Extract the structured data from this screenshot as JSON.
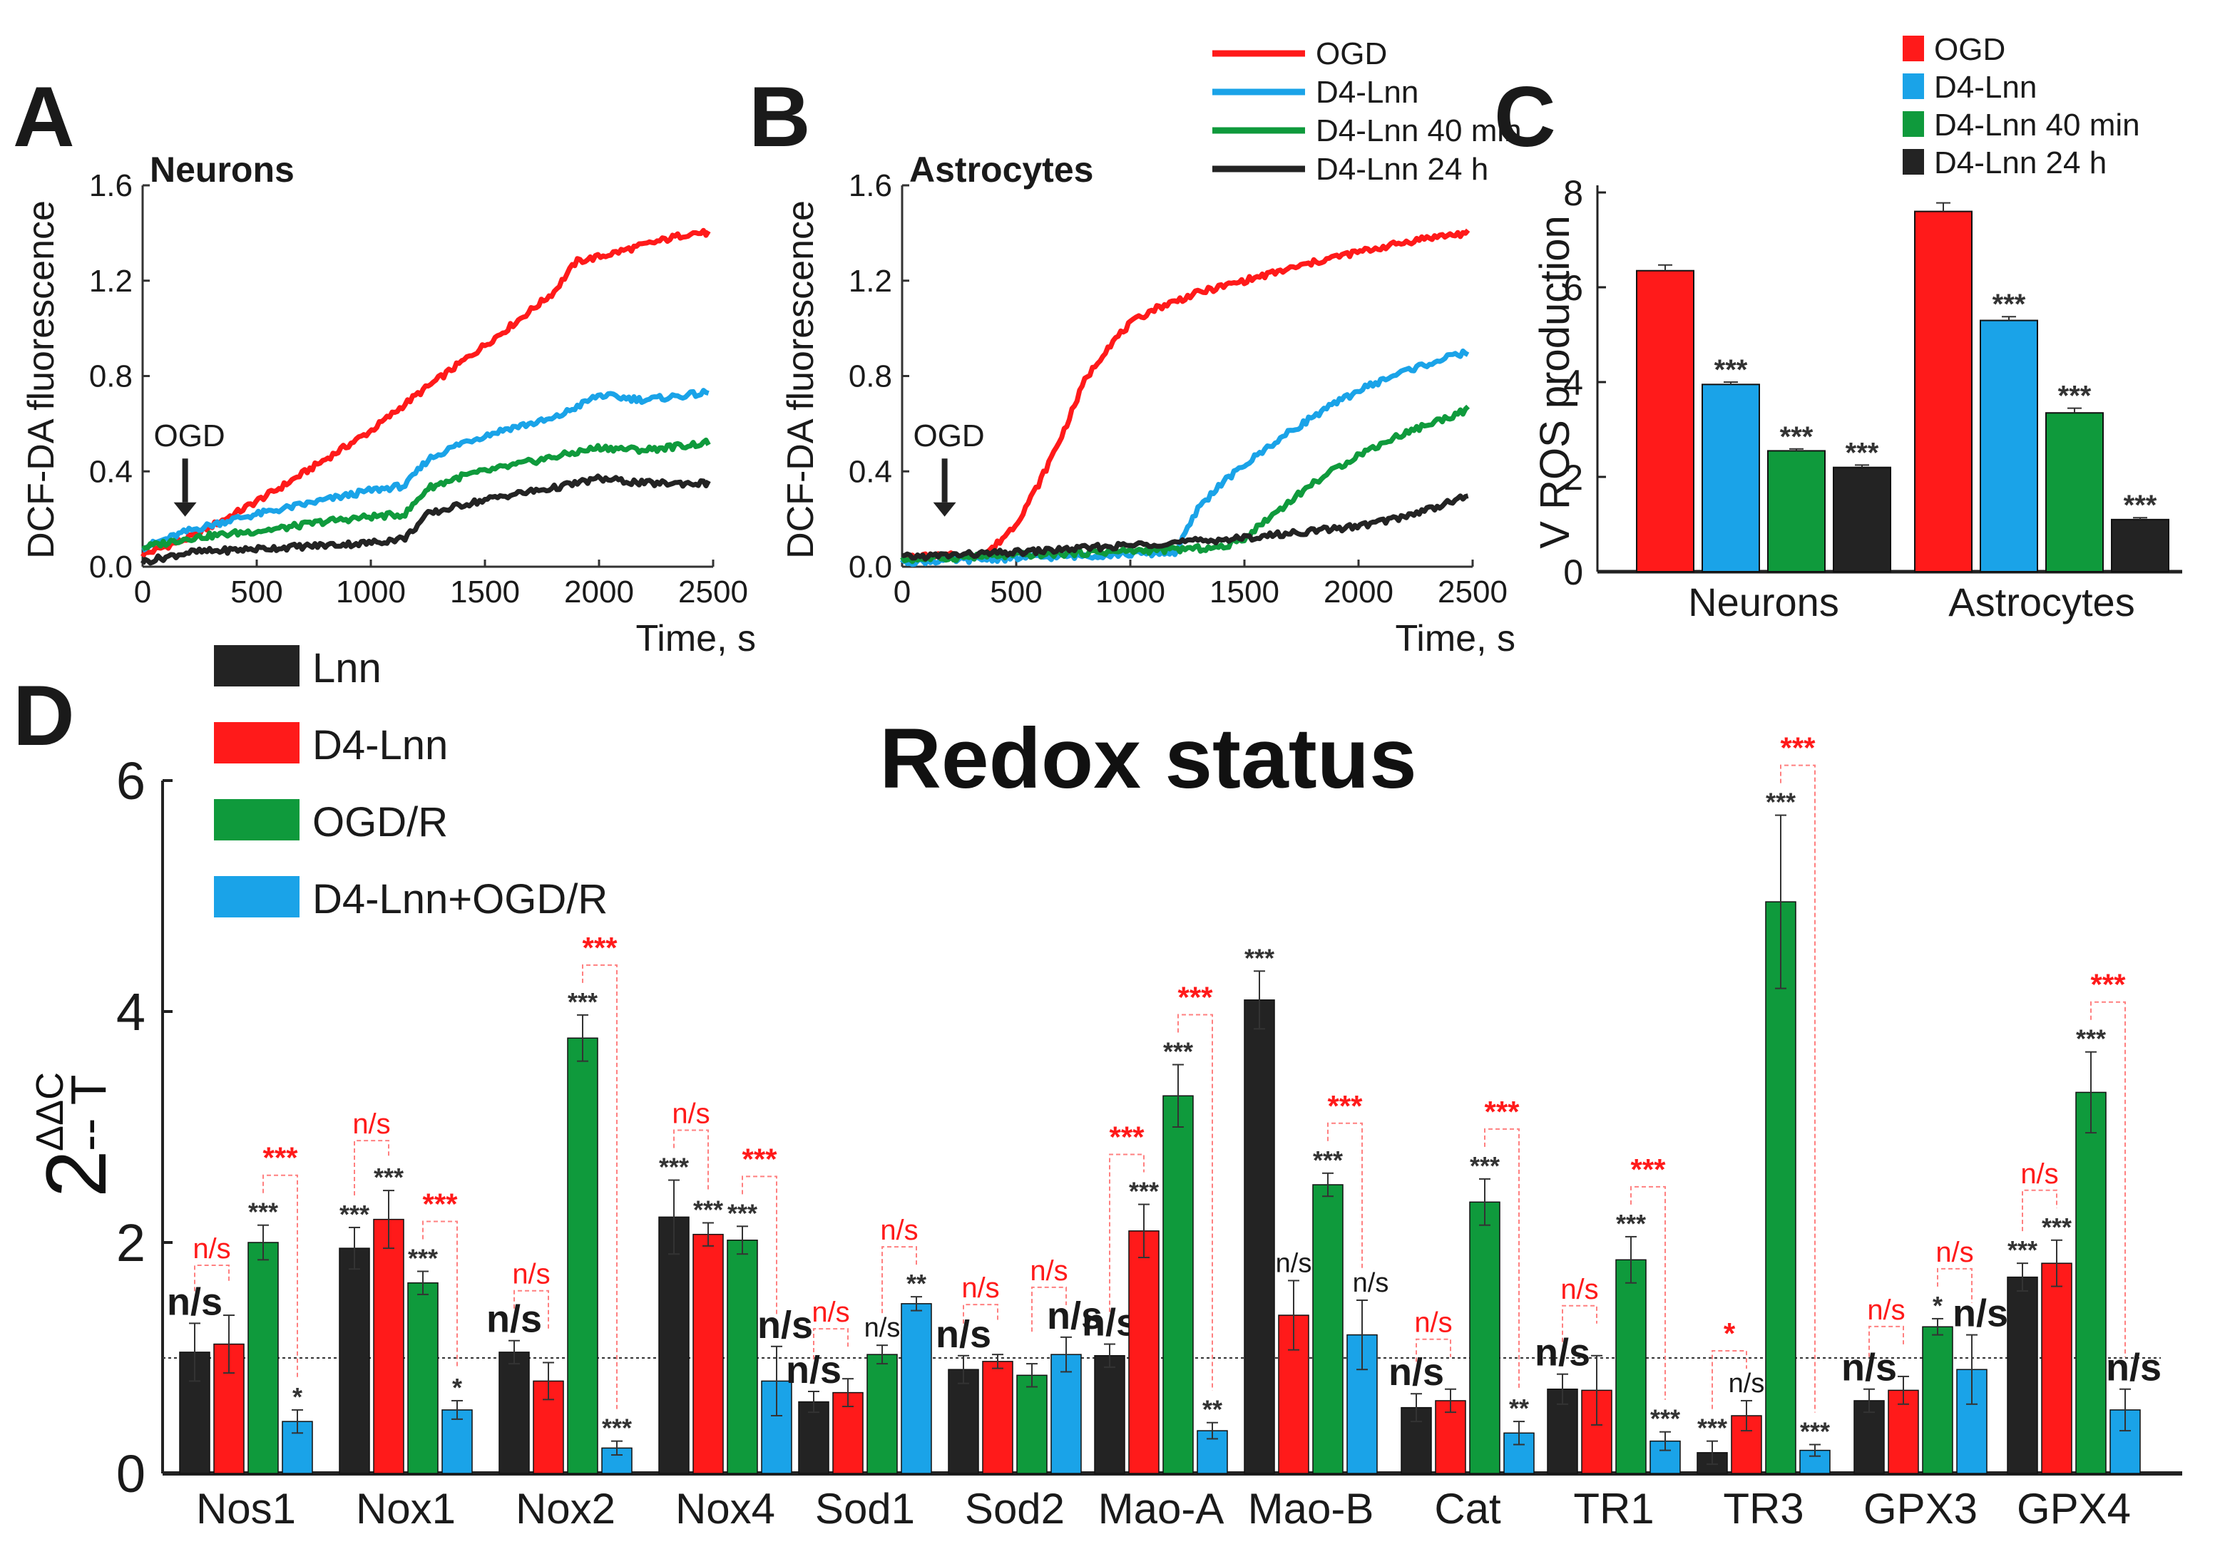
{
  "colors": {
    "red": "#ff1a1a",
    "blue": "#1aa3e8",
    "green": "#0f9a3c",
    "black": "#232323",
    "sig_red": "#ff1a1a",
    "bracket_red": "#ff8080"
  },
  "chart_data": [
    {
      "panel": "A",
      "type": "line",
      "title": "Neurons",
      "xlabel": "Time, s",
      "ylabel": "DCF-DA fluorescence",
      "xlim": [
        0,
        2500
      ],
      "ylim": [
        0,
        1.6
      ],
      "xticks": [
        "0",
        "500",
        "1000",
        "1500",
        "2000",
        "2500"
      ],
      "yticks": [
        "0.0",
        "0.4",
        "0.8",
        "1.2",
        "1.6"
      ],
      "annotation": "OGD",
      "annotation_x": 180,
      "series": [
        {
          "name": "OGD",
          "color": "red",
          "x": [
            0,
            200,
            400,
            600,
            800,
            1000,
            1200,
            1400,
            1600,
            1800,
            1900,
            2000,
            2200,
            2400,
            2480
          ],
          "y": [
            0.05,
            0.12,
            0.22,
            0.33,
            0.45,
            0.57,
            0.72,
            0.86,
            1.0,
            1.15,
            1.28,
            1.3,
            1.35,
            1.4,
            1.4
          ]
        },
        {
          "name": "D4-Lnn",
          "color": "blue",
          "x": [
            0,
            200,
            400,
            600,
            800,
            1000,
            1150,
            1250,
            1400,
            1600,
            1800,
            2000,
            2200,
            2480
          ],
          "y": [
            0.08,
            0.15,
            0.2,
            0.24,
            0.28,
            0.32,
            0.34,
            0.45,
            0.52,
            0.58,
            0.62,
            0.72,
            0.7,
            0.73
          ]
        },
        {
          "name": "D4-Lnn 40 min",
          "color": "green",
          "x": [
            0,
            200,
            400,
            600,
            800,
            1000,
            1150,
            1250,
            1400,
            1600,
            1800,
            2000,
            2200,
            2480
          ],
          "y": [
            0.08,
            0.12,
            0.14,
            0.16,
            0.19,
            0.21,
            0.22,
            0.33,
            0.38,
            0.42,
            0.46,
            0.5,
            0.49,
            0.52
          ]
        },
        {
          "name": "D4-Lnn 24 h",
          "color": "black",
          "x": [
            0,
            200,
            400,
            600,
            800,
            1000,
            1150,
            1250,
            1400,
            1600,
            1800,
            2000,
            2200,
            2480
          ],
          "y": [
            0.02,
            0.06,
            0.07,
            0.08,
            0.09,
            0.1,
            0.12,
            0.22,
            0.26,
            0.3,
            0.33,
            0.37,
            0.35,
            0.35
          ]
        }
      ]
    },
    {
      "panel": "B",
      "type": "line",
      "title": "Astrocytes",
      "xlabel": "Time, s",
      "ylabel": "DCF-DA fluorescence",
      "xlim": [
        0,
        2500
      ],
      "ylim": [
        0,
        1.6
      ],
      "xticks": [
        "0",
        "500",
        "1000",
        "1500",
        "2000",
        "2500"
      ],
      "yticks": [
        "0.0",
        "0.4",
        "0.8",
        "1.2",
        "1.6"
      ],
      "annotation": "OGD",
      "annotation_x": 180,
      "legend": [
        "OGD",
        "D4-Lnn",
        "D4-Lnn 40 min",
        "D4-Lnn 24 h"
      ],
      "series": [
        {
          "name": "OGD",
          "color": "red",
          "x": [
            0,
            350,
            400,
            500,
            600,
            700,
            800,
            900,
            1000,
            1100,
            1300,
            1500,
            1700,
            1900,
            2100,
            2300,
            2480
          ],
          "y": [
            0.04,
            0.05,
            0.08,
            0.18,
            0.35,
            0.55,
            0.78,
            0.92,
            1.02,
            1.08,
            1.15,
            1.2,
            1.25,
            1.3,
            1.34,
            1.38,
            1.4
          ]
        },
        {
          "name": "D4-Lnn",
          "color": "blue",
          "x": [
            0,
            1200,
            1300,
            1400,
            1600,
            1800,
            2000,
            2200,
            2400,
            2480
          ],
          "y": [
            0.02,
            0.06,
            0.25,
            0.35,
            0.5,
            0.63,
            0.74,
            0.82,
            0.88,
            0.9
          ]
        },
        {
          "name": "D4-Lnn 40 min",
          "color": "green",
          "x": [
            0,
            1400,
            1500,
            1600,
            1800,
            2000,
            2200,
            2400,
            2480
          ],
          "y": [
            0.03,
            0.08,
            0.12,
            0.2,
            0.35,
            0.47,
            0.56,
            0.63,
            0.66
          ]
        },
        {
          "name": "D4-Lnn 24 h",
          "color": "black",
          "x": [
            0,
            500,
            1000,
            1500,
            2000,
            2200,
            2400,
            2480
          ],
          "y": [
            0.04,
            0.06,
            0.09,
            0.12,
            0.17,
            0.21,
            0.27,
            0.3
          ]
        }
      ]
    },
    {
      "panel": "C",
      "type": "bar",
      "ylabel": "V ROS production",
      "ylim": [
        0,
        8
      ],
      "yticks": [
        "0",
        "2",
        "4",
        "6",
        "8"
      ],
      "categories": [
        "Neurons",
        "Astrocytes"
      ],
      "legend": [
        "OGD",
        "D4-Lnn",
        "D4-Lnn 40 min",
        "D4-Lnn 24 h"
      ],
      "series": [
        {
          "name": "OGD",
          "color": "red",
          "values": [
            6.35,
            7.6
          ],
          "err": [
            0.12,
            0.18
          ],
          "sig": [
            "",
            ""
          ]
        },
        {
          "name": "D4-Lnn",
          "color": "blue",
          "values": [
            3.95,
            5.3
          ],
          "err": [
            0.05,
            0.08
          ],
          "sig": [
            "***",
            "***"
          ]
        },
        {
          "name": "D4-Lnn 40 min",
          "color": "green",
          "values": [
            2.55,
            3.35
          ],
          "err": [
            0.04,
            0.1
          ],
          "sig": [
            "***",
            "***"
          ]
        },
        {
          "name": "D4-Lnn 24 h",
          "color": "black",
          "values": [
            2.2,
            1.1
          ],
          "err": [
            0.05,
            0.04
          ],
          "sig": [
            "***",
            "***"
          ]
        }
      ]
    },
    {
      "panel": "D",
      "type": "bar",
      "title": "Redox status",
      "ylabel_base": "2",
      "ylabel_exp_top": "ΔΔC",
      "ylabel_exp_bottom": "-- T",
      "ylim": [
        0,
        6
      ],
      "yticks": [
        "0",
        "2",
        "4",
        "6"
      ],
      "reference_line": 1,
      "categories": [
        "Nos1",
        "Nox1",
        "Nox2",
        "Nox4",
        "Sod1",
        "Sod2",
        "Mao-A",
        "Mao-B",
        "Cat",
        "TR1",
        "TR3",
        "GPX3",
        "GPX4"
      ],
      "legend": [
        "Lnn",
        "D4-Lnn",
        "OGD/R",
        "D4-Lnn+OGD/R"
      ],
      "series": [
        {
          "name": "Lnn",
          "color": "black",
          "values": [
            1.05,
            1.95,
            1.05,
            2.22,
            0.62,
            0.9,
            1.02,
            4.1,
            0.57,
            0.73,
            0.18,
            0.63,
            1.7
          ],
          "err": [
            0.25,
            0.18,
            0.1,
            0.32,
            0.09,
            0.12,
            0.1,
            0.25,
            0.12,
            0.13,
            0.1,
            0.1,
            0.12
          ],
          "sig": [
            "n/s",
            "***",
            "n/s",
            "***",
            "n/s",
            "n/s",
            "n/s",
            "***",
            "n/s",
            "n/s",
            "***",
            "n/s",
            "***"
          ]
        },
        {
          "name": "D4-Lnn",
          "color": "red",
          "values": [
            1.12,
            2.2,
            0.8,
            2.07,
            0.7,
            0.97,
            2.1,
            1.37,
            0.63,
            0.72,
            0.5,
            0.72,
            1.82
          ],
          "err": [
            0.25,
            0.25,
            0.16,
            0.1,
            0.12,
            0.06,
            0.23,
            0.3,
            0.1,
            0.3,
            0.13,
            0.12,
            0.2
          ],
          "sig": [
            "",
            "***",
            "",
            "***",
            "",
            "",
            "***",
            "n/s",
            "",
            "",
            "n/s",
            "",
            "***"
          ]
        },
        {
          "name": "OGD/R",
          "color": "green",
          "values": [
            2.0,
            1.65,
            3.77,
            2.02,
            1.03,
            0.85,
            3.27,
            2.5,
            2.35,
            1.85,
            4.95,
            1.27,
            3.3
          ],
          "err": [
            0.15,
            0.1,
            0.2,
            0.12,
            0.08,
            0.1,
            0.27,
            0.1,
            0.2,
            0.2,
            0.75,
            0.07,
            0.35
          ],
          "sig": [
            "***",
            "***",
            "***",
            "***",
            "n/s",
            "",
            "***",
            "***",
            "***",
            "***",
            "***",
            "*",
            "***"
          ]
        },
        {
          "name": "D4-Lnn+OGD/R",
          "color": "blue",
          "values": [
            0.45,
            0.55,
            0.22,
            0.8,
            1.47,
            1.03,
            0.37,
            1.2,
            0.35,
            0.28,
            0.2,
            0.9,
            0.55
          ],
          "err": [
            0.1,
            0.08,
            0.06,
            0.3,
            0.06,
            0.15,
            0.07,
            0.3,
            0.1,
            0.08,
            0.05,
            0.3,
            0.18
          ],
          "sig": [
            "*",
            "*",
            "***",
            "n/s",
            "**",
            "n/s",
            "**",
            "n/s",
            "**",
            "***",
            "***",
            "n/s",
            "n/s"
          ]
        }
      ],
      "pair_sig_lnn_vs_d4": [
        "n/s",
        "n/s",
        "n/s",
        "n/s",
        "n/s",
        "n/s",
        "***",
        "",
        "n/s",
        "n/s",
        "*",
        "n/s",
        "n/s"
      ],
      "pair_sig_ogd_vs_d4ogd": [
        "***",
        "***",
        "***",
        "***",
        "n/s",
        "n/s",
        "***",
        "***",
        "***",
        "***",
        "***",
        "n/s",
        "***"
      ]
    }
  ]
}
